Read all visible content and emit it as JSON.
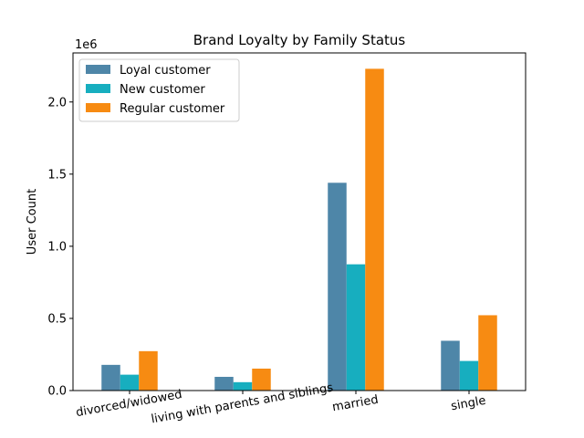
{
  "chart_data": {
    "type": "bar",
    "title": "Brand Loyalty by Family Status",
    "xlabel": "",
    "ylabel": "User Count",
    "y_offset_label": "1e6",
    "y_scale": 1000000,
    "ylim": [
      0,
      2340000
    ],
    "yticks": [
      0,
      500000,
      1000000,
      1500000,
      2000000
    ],
    "ytick_labels": [
      "0.0",
      "0.5",
      "1.0",
      "1.5",
      "2.0"
    ],
    "categories": [
      "divorced/widowed",
      "living with parents and siblings",
      "married",
      "single"
    ],
    "series": [
      {
        "name": "Loyal customer",
        "color": "#4e86a8",
        "values": [
          178000,
          95000,
          1440000,
          345000
        ]
      },
      {
        "name": "New customer",
        "color": "#17aebf",
        "values": [
          110000,
          58000,
          875000,
          205000
        ]
      },
      {
        "name": "Regular customer",
        "color": "#f78b12",
        "values": [
          273000,
          152000,
          2230000,
          522000
        ]
      }
    ],
    "legend_position": "upper left",
    "grid": false
  }
}
